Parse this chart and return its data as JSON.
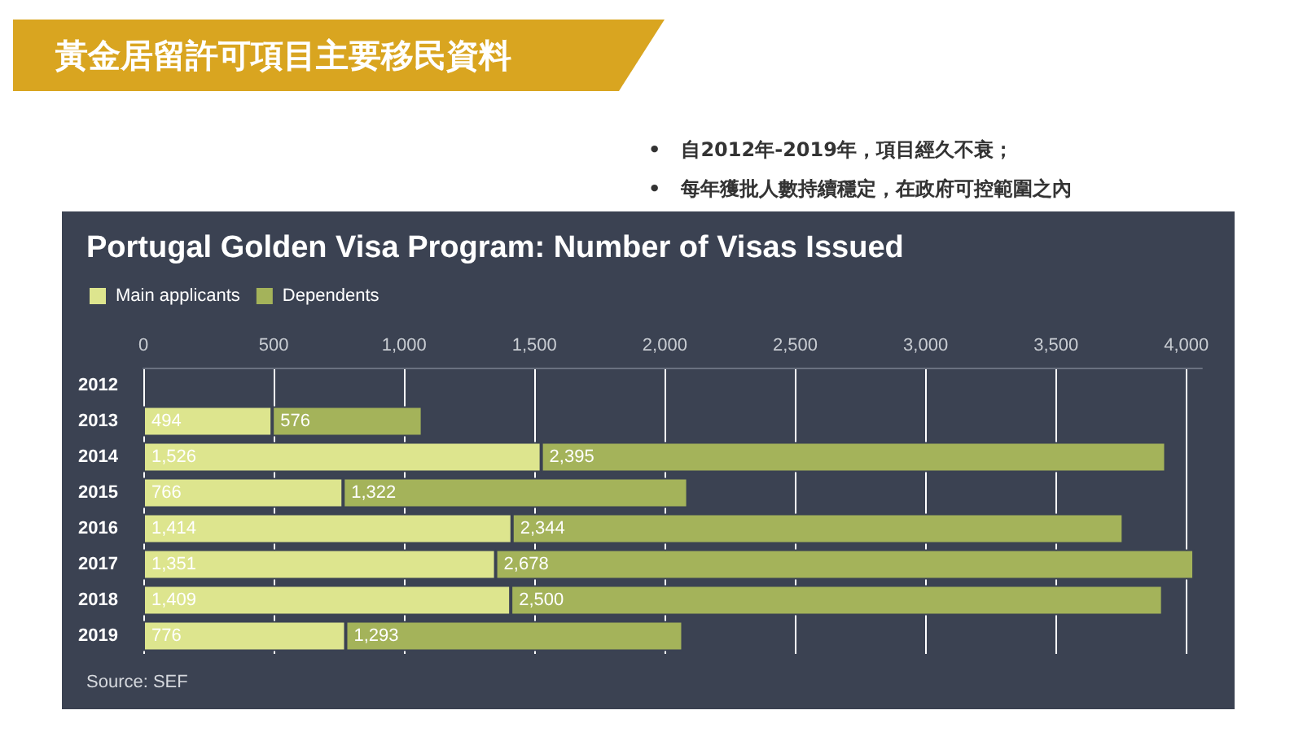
{
  "chart_data": {
    "type": "bar",
    "orientation": "horizontal",
    "stacked": true,
    "title": "Portugal Golden Visa Program: Number of Visas Issued",
    "subtitle": "黃金居留許可項目主要移民資料",
    "annotations": [
      "•   自2012年-2019年，項目經久不衰；",
      "•   每年獲批人數持續穩定，在政府可控範圍之內",
      "Source: SEF"
    ],
    "categories": [
      "2012",
      "2013",
      "2014",
      "2015",
      "2016",
      "2017",
      "2018",
      "2019"
    ],
    "series": [
      {
        "name": "Main applicants",
        "color": "#dde58e",
        "values": [
          null,
          494,
          1526,
          766,
          1414,
          1351,
          1409,
          776
        ],
        "value_labels": [
          null,
          "494",
          "1,526",
          "766",
          "1,414",
          "1,351",
          "1,409",
          "776"
        ]
      },
      {
        "name": "Dependents",
        "color": "#a4b35a",
        "values": [
          null,
          576,
          2395,
          1322,
          2344,
          2678,
          2500,
          1293
        ],
        "value_labels": [
          null,
          "576",
          "2,395",
          "1,322",
          "2,344",
          "2,678",
          "2,500",
          "1,293"
        ]
      }
    ],
    "xlim": [
      0,
      4060
    ],
    "xticks": [
      0,
      500,
      {
        "value": 1000,
        "label": "1,000"
      },
      {
        "value": 1500,
        "label": "1,500"
      },
      {
        "value": 2000,
        "label": "2,000"
      },
      {
        "value": 2500,
        "label": "2,500"
      },
      {
        "value": 3000,
        "label": "3,000"
      },
      {
        "value": 3500,
        "label": "3,500"
      },
      {
        "value": 4000,
        "label": "4,000"
      }
    ],
    "grid": "x",
    "legend": "top left"
  }
}
